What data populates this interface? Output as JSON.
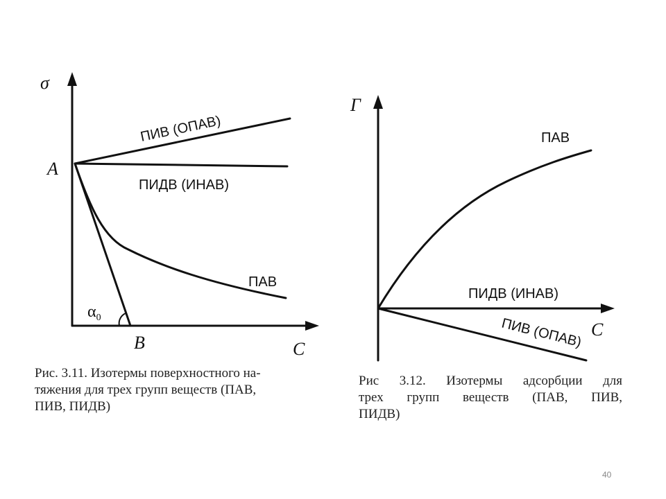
{
  "figure_left": {
    "axis_y_label": "σ",
    "axis_x_label": "C",
    "point_a": "A",
    "point_b": "B",
    "angle_label": "α",
    "angle_subscript": "0",
    "curves": {
      "piv": "ПИВ (ОПАВ)",
      "pidv": "ПИДВ (ИНАВ)",
      "pav": "ПАВ"
    },
    "caption_lines": [
      "Рис. 3.11. Изотермы поверхностного на-",
      "тяжения для трех групп веществ (ПАВ,",
      "ПИВ, ПИДВ)"
    ]
  },
  "figure_right": {
    "axis_y_label": "Г",
    "axis_x_label": "C",
    "curves": {
      "pav": "ПАВ",
      "pidv": "ПИДВ (ИНАВ)",
      "piv": "ПИВ (ОПАВ)"
    },
    "caption_lines": [
      "Рис 3.12. Изотермы адсорбции для",
      "трех групп веществ (ПАВ, ПИВ,",
      "ПИДВ)"
    ]
  },
  "page_number": "40"
}
